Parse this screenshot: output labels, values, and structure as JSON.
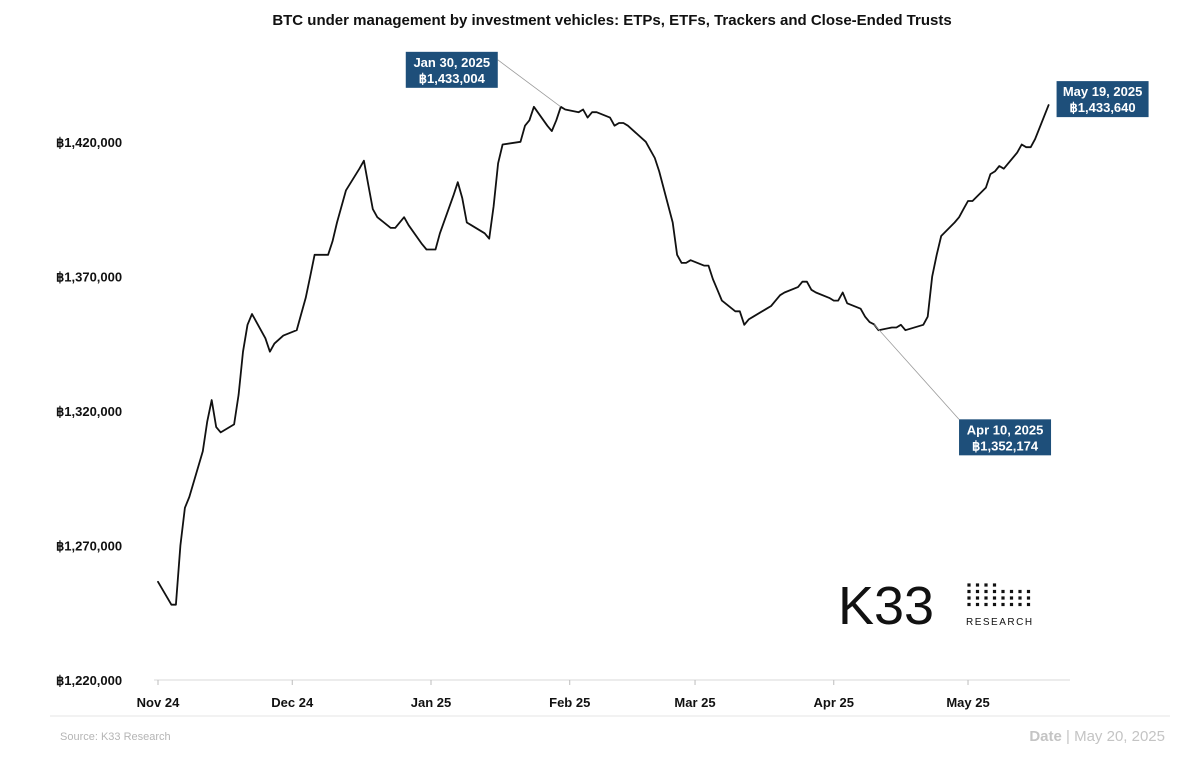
{
  "chart_data": {
    "type": "line",
    "title": "BTC under management by investment vehicles: ETPs, ETFs, Trackers and Close-Ended Trusts",
    "xlabel": "",
    "ylabel": "",
    "x_ticks": [
      "Nov 24",
      "Dec 24",
      "Jan 25",
      "Feb 25",
      "Mar 25",
      "Apr 25",
      "May 25"
    ],
    "y_ticks": [
      "฿1,220,000",
      "฿1,270,000",
      "฿1,320,000",
      "฿1,370,000",
      "฿1,420,000"
    ],
    "y_tick_values": [
      1220000,
      1270000,
      1320000,
      1370000,
      1420000
    ],
    "ylim": [
      1220000,
      1440000
    ],
    "xlim": [
      "2024-11-01",
      "2025-05-22"
    ],
    "grid": false,
    "series": [
      {
        "color": "#111111",
        "points": [
          [
            "2024-11-01",
            1256500
          ],
          [
            "2024-11-04",
            1248000
          ],
          [
            "2024-11-05",
            1248000
          ],
          [
            "2024-11-06",
            1270000
          ],
          [
            "2024-11-07",
            1284000
          ],
          [
            "2024-11-08",
            1288000
          ],
          [
            "2024-11-11",
            1305000
          ],
          [
            "2024-11-12",
            1316000
          ],
          [
            "2024-11-13",
            1324000
          ],
          [
            "2024-11-14",
            1314000
          ],
          [
            "2024-11-15",
            1312000
          ],
          [
            "2024-11-18",
            1315000
          ],
          [
            "2024-11-19",
            1326000
          ],
          [
            "2024-11-20",
            1342000
          ],
          [
            "2024-11-21",
            1352000
          ],
          [
            "2024-11-22",
            1356000
          ],
          [
            "2024-11-25",
            1347000
          ],
          [
            "2024-11-26",
            1342000
          ],
          [
            "2024-11-27",
            1345000
          ],
          [
            "2024-11-29",
            1348000
          ],
          [
            "2024-12-02",
            1350000
          ],
          [
            "2024-12-03",
            1356000
          ],
          [
            "2024-12-04",
            1362000
          ],
          [
            "2024-12-05",
            1370000
          ],
          [
            "2024-12-06",
            1378000
          ],
          [
            "2024-12-09",
            1378000
          ],
          [
            "2024-12-10",
            1383000
          ],
          [
            "2024-12-11",
            1390000
          ],
          [
            "2024-12-12",
            1396000
          ],
          [
            "2024-12-13",
            1402000
          ],
          [
            "2024-12-16",
            1410000
          ],
          [
            "2024-12-17",
            1413000
          ],
          [
            "2024-12-18",
            1404000
          ],
          [
            "2024-12-19",
            1395000
          ],
          [
            "2024-12-20",
            1392000
          ],
          [
            "2024-12-23",
            1388000
          ],
          [
            "2024-12-24",
            1388000
          ],
          [
            "2024-12-26",
            1392000
          ],
          [
            "2024-12-27",
            1389000
          ],
          [
            "2024-12-30",
            1382000
          ],
          [
            "2024-12-31",
            1380000
          ],
          [
            "2025-01-02",
            1380000
          ],
          [
            "2025-01-03",
            1386000
          ],
          [
            "2025-01-06",
            1400000
          ],
          [
            "2025-01-07",
            1405000
          ],
          [
            "2025-01-08",
            1399000
          ],
          [
            "2025-01-09",
            1390000
          ],
          [
            "2025-01-10",
            1389000
          ],
          [
            "2025-01-13",
            1386000
          ],
          [
            "2025-01-14",
            1384000
          ],
          [
            "2025-01-15",
            1396000
          ],
          [
            "2025-01-16",
            1412000
          ],
          [
            "2025-01-17",
            1419000
          ],
          [
            "2025-01-21",
            1420000
          ],
          [
            "2025-01-22",
            1426000
          ],
          [
            "2025-01-23",
            1428000
          ],
          [
            "2025-01-24",
            1433004
          ],
          [
            "2025-01-27",
            1426000
          ],
          [
            "2025-01-28",
            1424000
          ],
          [
            "2025-01-29",
            1428000
          ],
          [
            "2025-01-30",
            1433004
          ],
          [
            "2025-01-31",
            1432000
          ],
          [
            "2025-02-03",
            1431000
          ],
          [
            "2025-02-04",
            1432000
          ],
          [
            "2025-02-05",
            1429000
          ],
          [
            "2025-02-06",
            1431000
          ],
          [
            "2025-02-07",
            1431000
          ],
          [
            "2025-02-10",
            1429000
          ],
          [
            "2025-02-11",
            1426000
          ],
          [
            "2025-02-12",
            1427000
          ],
          [
            "2025-02-13",
            1427000
          ],
          [
            "2025-02-14",
            1426000
          ],
          [
            "2025-02-18",
            1420000
          ],
          [
            "2025-02-19",
            1417000
          ],
          [
            "2025-02-20",
            1414000
          ],
          [
            "2025-02-21",
            1409000
          ],
          [
            "2025-02-24",
            1390000
          ],
          [
            "2025-02-25",
            1378000
          ],
          [
            "2025-02-26",
            1375000
          ],
          [
            "2025-02-27",
            1375000
          ],
          [
            "2025-02-28",
            1376000
          ],
          [
            "2025-03-03",
            1374000
          ],
          [
            "2025-03-04",
            1374000
          ],
          [
            "2025-03-05",
            1369000
          ],
          [
            "2025-03-06",
            1365000
          ],
          [
            "2025-03-07",
            1361000
          ],
          [
            "2025-03-10",
            1357000
          ],
          [
            "2025-03-11",
            1357000
          ],
          [
            "2025-03-12",
            1352000
          ],
          [
            "2025-03-13",
            1354000
          ],
          [
            "2025-03-14",
            1355000
          ],
          [
            "2025-03-17",
            1358000
          ],
          [
            "2025-03-18",
            1359000
          ],
          [
            "2025-03-19",
            1361000
          ],
          [
            "2025-03-20",
            1363000
          ],
          [
            "2025-03-21",
            1364000
          ],
          [
            "2025-03-24",
            1366000
          ],
          [
            "2025-03-25",
            1368000
          ],
          [
            "2025-03-26",
            1368000
          ],
          [
            "2025-03-27",
            1365000
          ],
          [
            "2025-03-28",
            1364000
          ],
          [
            "2025-03-31",
            1362000
          ],
          [
            "2025-04-01",
            1361000
          ],
          [
            "2025-04-02",
            1361000
          ],
          [
            "2025-04-03",
            1364000
          ],
          [
            "2025-04-04",
            1360000
          ],
          [
            "2025-04-07",
            1358000
          ],
          [
            "2025-04-08",
            1355000
          ],
          [
            "2025-04-09",
            1353000
          ],
          [
            "2025-04-10",
            1352174
          ],
          [
            "2025-04-11",
            1350000
          ],
          [
            "2025-04-14",
            1351000
          ],
          [
            "2025-04-15",
            1351000
          ],
          [
            "2025-04-16",
            1352000
          ],
          [
            "2025-04-17",
            1350000
          ],
          [
            "2025-04-21",
            1352000
          ],
          [
            "2025-04-22",
            1355000
          ],
          [
            "2025-04-23",
            1370000
          ],
          [
            "2025-04-24",
            1378000
          ],
          [
            "2025-04-25",
            1385000
          ],
          [
            "2025-04-28",
            1390000
          ],
          [
            "2025-04-29",
            1392000
          ],
          [
            "2025-04-30",
            1395000
          ],
          [
            "2025-05-01",
            1398000
          ],
          [
            "2025-05-02",
            1398000
          ],
          [
            "2025-05-05",
            1403000
          ],
          [
            "2025-05-06",
            1408000
          ],
          [
            "2025-05-07",
            1409000
          ],
          [
            "2025-05-08",
            1411000
          ],
          [
            "2025-05-09",
            1410000
          ],
          [
            "2025-05-12",
            1416000
          ],
          [
            "2025-05-13",
            1419000
          ],
          [
            "2025-05-14",
            1418000
          ],
          [
            "2025-05-15",
            1418000
          ],
          [
            "2025-05-16",
            1421000
          ],
          [
            "2025-05-19",
            1433640
          ]
        ]
      }
    ],
    "annotations": [
      {
        "date": "2025-01-30",
        "value": 1433004,
        "line1": "Jan 30, 2025",
        "line2": "฿1,433,004"
      },
      {
        "date": "2025-04-10",
        "value": 1352174,
        "line1": "Apr 10, 2025",
        "line2": "฿1,352,174"
      },
      {
        "date": "2025-05-19",
        "value": 1433640,
        "line1": "May 19, 2025",
        "line2": "฿1,433,640"
      }
    ],
    "callout_color": "#1e4f7a"
  },
  "footer": {
    "source": "Source:  K33 Research",
    "date_label": "Date",
    "date_separator": " | ",
    "date_value": "May 20, 2025"
  },
  "logo": {
    "main": "K33",
    "sub": "RESEARCH"
  }
}
